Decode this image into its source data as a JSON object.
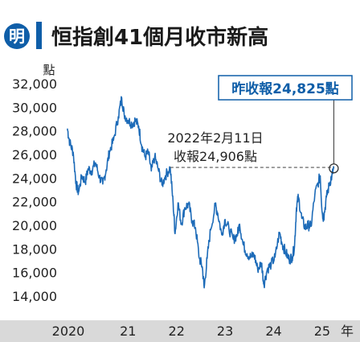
{
  "header": {
    "logo_text": "明",
    "title": "恒指創41個月收市新高"
  },
  "colors": {
    "accent_blue": "#0f5ea8",
    "line_blue": "#1d6bb8",
    "title_color": "#1a1a1a",
    "dashed_line": "#555555",
    "axis_bar": "#d9d9d9",
    "grid": "#dddddd"
  },
  "chart_data": {
    "type": "line",
    "y_unit_label": "點",
    "ylim": [
      13000,
      33000
    ],
    "y_ticks": [
      {
        "value": 32000,
        "label": "32,000"
      },
      {
        "value": 30000,
        "label": "30,000"
      },
      {
        "value": 28000,
        "label": "28,000"
      },
      {
        "value": 26000,
        "label": "26,000"
      },
      {
        "value": 24000,
        "label": "24,000"
      },
      {
        "value": 22000,
        "label": "22,000"
      },
      {
        "value": 20000,
        "label": "20,000"
      },
      {
        "value": 18000,
        "label": "18,000"
      },
      {
        "value": 16000,
        "label": "16,000"
      },
      {
        "value": 14000,
        "label": "14,000"
      }
    ],
    "xlim": [
      2019.97,
      2025.5
    ],
    "x_ticks": [
      {
        "value": 2020.0,
        "label": "2020"
      },
      {
        "value": 2021.0,
        "label": "21"
      },
      {
        "value": 2022.0,
        "label": "22"
      },
      {
        "value": 2023.0,
        "label": "23"
      },
      {
        "value": 2024.0,
        "label": "24"
      },
      {
        "value": 2025.0,
        "label": "25"
      }
    ],
    "x_unit_label": "年",
    "grid": false,
    "series": [
      {
        "points": [
          [
            2020.0,
            28200
          ],
          [
            2020.05,
            27000
          ],
          [
            2020.12,
            26200
          ],
          [
            2020.18,
            23500
          ],
          [
            2020.23,
            22800
          ],
          [
            2020.3,
            24200
          ],
          [
            2020.37,
            23700
          ],
          [
            2020.43,
            24800
          ],
          [
            2020.5,
            24600
          ],
          [
            2020.58,
            25300
          ],
          [
            2020.66,
            24100
          ],
          [
            2020.73,
            23500
          ],
          [
            2020.8,
            24700
          ],
          [
            2020.87,
            26300
          ],
          [
            2020.95,
            27200
          ],
          [
            2021.05,
            29200
          ],
          [
            2021.12,
            30800
          ],
          [
            2021.17,
            29400
          ],
          [
            2021.25,
            28900
          ],
          [
            2021.33,
            28600
          ],
          [
            2021.4,
            28900
          ],
          [
            2021.47,
            28400
          ],
          [
            2021.53,
            26800
          ],
          [
            2021.6,
            25800
          ],
          [
            2021.67,
            26200
          ],
          [
            2021.73,
            24600
          ],
          [
            2021.8,
            25800
          ],
          [
            2021.87,
            24800
          ],
          [
            2021.95,
            23400
          ],
          [
            2022.02,
            24200
          ],
          [
            2022.12,
            24900
          ],
          [
            2022.18,
            21800
          ],
          [
            2022.22,
            19300
          ],
          [
            2022.28,
            21900
          ],
          [
            2022.35,
            20100
          ],
          [
            2022.42,
            21500
          ],
          [
            2022.5,
            21800
          ],
          [
            2022.57,
            20400
          ],
          [
            2022.64,
            19800
          ],
          [
            2022.72,
            17200
          ],
          [
            2022.78,
            16500
          ],
          [
            2022.82,
            14700
          ],
          [
            2022.88,
            17200
          ],
          [
            2022.95,
            19600
          ],
          [
            2023.05,
            21700
          ],
          [
            2023.1,
            21000
          ],
          [
            2023.18,
            19200
          ],
          [
            2023.25,
            20500
          ],
          [
            2023.33,
            19700
          ],
          [
            2023.42,
            18800
          ],
          [
            2023.5,
            19200
          ],
          [
            2023.55,
            20100
          ],
          [
            2023.62,
            18400
          ],
          [
            2023.7,
            17600
          ],
          [
            2023.78,
            17300
          ],
          [
            2023.85,
            17500
          ],
          [
            2023.92,
            16300
          ],
          [
            2024.0,
            16800
          ],
          [
            2024.05,
            15000
          ],
          [
            2024.12,
            16300
          ],
          [
            2024.2,
            16700
          ],
          [
            2024.28,
            17300
          ],
          [
            2024.37,
            19400
          ],
          [
            2024.43,
            18400
          ],
          [
            2024.5,
            17700
          ],
          [
            2024.57,
            17100
          ],
          [
            2024.63,
            17300
          ],
          [
            2024.68,
            18200
          ],
          [
            2024.72,
            21500
          ],
          [
            2024.76,
            22400
          ],
          [
            2024.83,
            20600
          ],
          [
            2024.9,
            19800
          ],
          [
            2024.96,
            20000
          ],
          [
            2025.02,
            19900
          ],
          [
            2025.1,
            22600
          ],
          [
            2025.18,
            23800
          ],
          [
            2025.21,
            24200
          ],
          [
            2025.25,
            21100
          ],
          [
            2025.28,
            20600
          ],
          [
            2025.34,
            22400
          ],
          [
            2025.4,
            23500
          ],
          [
            2025.45,
            24200
          ],
          [
            2025.49,
            24825
          ]
        ]
      }
    ],
    "annotations": {
      "reference": {
        "line1": "2022年2月11日",
        "line2": "收報24,906點",
        "value": 24906,
        "x_start": 2022.12
      },
      "latest": {
        "label": "昨收報24,825點",
        "value": 24825,
        "x": 2025.49
      }
    }
  }
}
